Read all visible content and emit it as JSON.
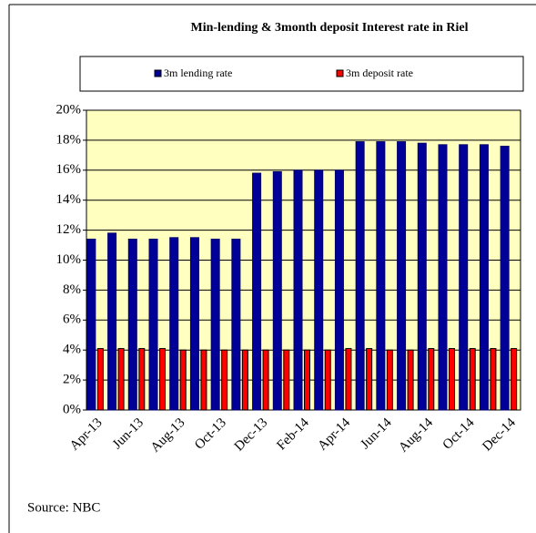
{
  "chart_data": {
    "type": "bar",
    "title": "Min-lending & 3month deposit Interest rate in Riel",
    "categories": [
      "Apr-13",
      null,
      "Jun-13",
      null,
      "Aug-13",
      null,
      "Oct-13",
      null,
      "Dec-13",
      null,
      "Feb-14",
      null,
      "Apr-14",
      null,
      "Jun-14",
      null,
      "Aug-14",
      null,
      "Oct-14",
      null,
      "Dec-14"
    ],
    "series": [
      {
        "name": "3m lending rate",
        "color": "#000099",
        "values": [
          11.4,
          11.8,
          11.4,
          11.4,
          11.5,
          11.5,
          11.4,
          11.4,
          15.8,
          15.9,
          16.0,
          16.0,
          16.0,
          17.9,
          17.9,
          17.9,
          17.8,
          17.7,
          17.7,
          17.7,
          17.6
        ]
      },
      {
        "name": "3m deposit rate",
        "color": "#ff0000",
        "values": [
          4.1,
          4.1,
          4.1,
          4.1,
          4.0,
          4.0,
          4.0,
          4.0,
          4.0,
          4.0,
          4.0,
          4.0,
          4.1,
          4.1,
          4.0,
          4.0,
          4.1,
          4.1,
          4.1,
          4.1,
          4.1
        ]
      }
    ],
    "ylim": [
      0,
      20
    ],
    "yticks": [
      {
        "value": 0,
        "label": "0%"
      },
      {
        "value": 2,
        "label": "2%"
      },
      {
        "value": 4,
        "label": "4%"
      },
      {
        "value": 6,
        "label": "6%"
      },
      {
        "value": 8,
        "label": "8%"
      },
      {
        "value": 10,
        "label": "10%"
      },
      {
        "value": 12,
        "label": "12%"
      },
      {
        "value": 14,
        "label": "14%"
      },
      {
        "value": 16,
        "label": "16%"
      },
      {
        "value": 18,
        "label": "18%"
      },
      {
        "value": 20,
        "label": "20%"
      }
    ],
    "grid": true,
    "legend": "top",
    "source": "Source: NBC"
  }
}
